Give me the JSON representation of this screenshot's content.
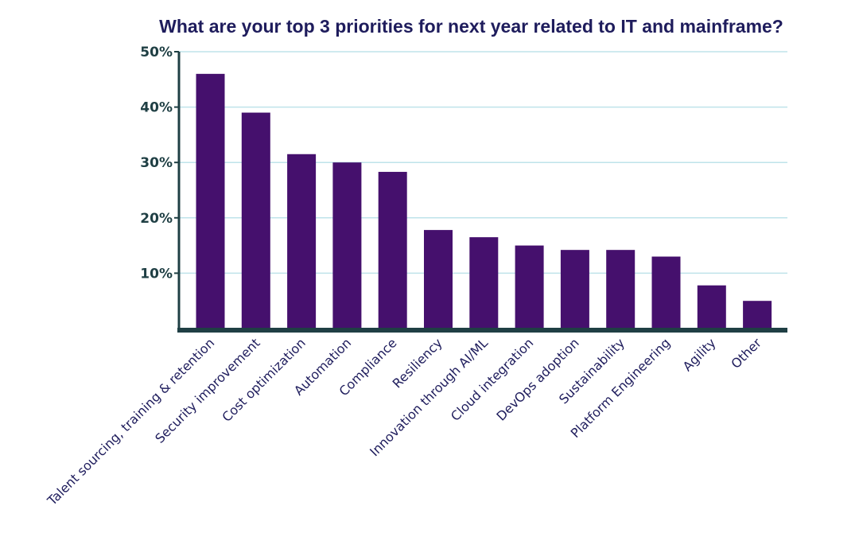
{
  "chart_data": {
    "type": "bar",
    "title": "What are your top 3 priorities for next year related to IT and mainframe?",
    "xlabel": "",
    "ylabel": "",
    "categories": [
      "Talent sourcing, training & retention",
      "Security improvement",
      "Cost optimization",
      "Automation",
      "Compliance",
      "Resiliency",
      "Innovation through AI/ML",
      "Cloud integration",
      "DevOps adoption",
      "Sustainability",
      "Platform Engineering",
      "Agility",
      "Other"
    ],
    "values": [
      46,
      39,
      31.5,
      30,
      28.3,
      17.8,
      16.5,
      15,
      14.2,
      14.2,
      13,
      7.8,
      5
    ],
    "ylim": [
      0,
      50
    ],
    "yticks": [
      10,
      20,
      30,
      40,
      50
    ],
    "ytick_labels": [
      "10%",
      "20%",
      "30%",
      "40%",
      "50%"
    ],
    "grid": true,
    "colors": {
      "bar": "#45106d",
      "axis": "#1f3f44",
      "grid": "#bfe3ea",
      "title": "#1e1c5c"
    }
  }
}
